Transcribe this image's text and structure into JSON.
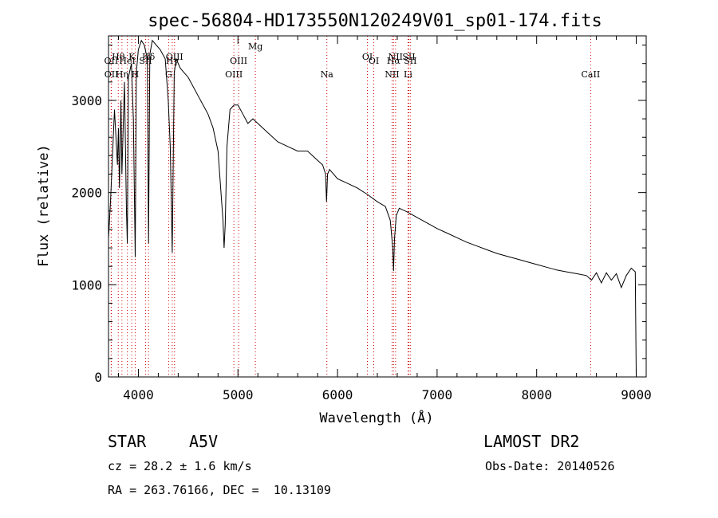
{
  "chart_data": {
    "type": "line",
    "title": "spec-56804-HD173550N120249V01_sp01-174.fits",
    "xlabel": "Wavelength (Å)",
    "ylabel": "Flux (relative)",
    "xlim": [
      3700,
      9100
    ],
    "ylim": [
      0,
      3700
    ],
    "xticks": [
      4000,
      5000,
      6000,
      7000,
      8000,
      9000
    ],
    "yticks": [
      0,
      1000,
      2000,
      3000
    ],
    "grid": false,
    "line_color": "#000000",
    "marker_color": "#cc0000",
    "series": [
      {
        "x": [
          3700,
          3720,
          3760,
          3790,
          3800,
          3810,
          3825,
          3835,
          3860,
          3880,
          3889,
          3900,
          3930,
          3950,
          3968,
          3980,
          4000,
          4030,
          4060,
          4090,
          4102,
          4115,
          4140,
          4180,
          4220,
          4270,
          4300,
          4320,
          4340,
          4360,
          4380,
          4420,
          4460,
          4500,
          4550,
          4600,
          4650,
          4700,
          4750,
          4800,
          4830,
          4850,
          4861,
          4872,
          4890,
          4920,
          4960,
          5000,
          5050,
          5100,
          5150,
          5200,
          5300,
          5400,
          5500,
          5600,
          5700,
          5800,
          5850,
          5880,
          5890,
          5900,
          5920,
          6000,
          6100,
          6200,
          6300,
          6400,
          6480,
          6530,
          6555,
          6563,
          6572,
          6590,
          6620,
          6700,
          6800,
          6900,
          7000,
          7100,
          7200,
          7300,
          7400,
          7500,
          7600,
          7700,
          7800,
          7900,
          8000,
          8100,
          8200,
          8300,
          8400,
          8500,
          8550,
          8600,
          8650,
          8700,
          8750,
          8800,
          8850,
          8900,
          8950,
          8990,
          9000
        ],
        "values": [
          1500,
          1900,
          2900,
          2300,
          2700,
          2050,
          3000,
          2200,
          3200,
          1800,
          1450,
          3250,
          3400,
          2800,
          1300,
          3300,
          3550,
          3650,
          3600,
          3450,
          1450,
          3500,
          3650,
          3600,
          3550,
          3450,
          3000,
          2500,
          1350,
          3300,
          3450,
          3350,
          3300,
          3250,
          3150,
          3050,
          2950,
          2850,
          2700,
          2450,
          2000,
          1700,
          1400,
          1650,
          2500,
          2900,
          2950,
          2950,
          2850,
          2750,
          2800,
          2750,
          2650,
          2550,
          2500,
          2450,
          2450,
          2350,
          2300,
          2200,
          1900,
          2200,
          2250,
          2150,
          2100,
          2050,
          1980,
          1900,
          1850,
          1700,
          1400,
          1150,
          1500,
          1750,
          1830,
          1790,
          1730,
          1670,
          1610,
          1560,
          1510,
          1460,
          1420,
          1380,
          1340,
          1310,
          1280,
          1250,
          1220,
          1190,
          1160,
          1140,
          1120,
          1100,
          1050,
          1130,
          1020,
          1130,
          1050,
          1120,
          970,
          1100,
          1180,
          1140,
          0
        ]
      }
    ],
    "lines": [
      {
        "name": "Hθ",
        "x": 3798,
        "level": 1
      },
      {
        "name": "K",
        "x": 3934,
        "level": 1
      },
      {
        "name": "Hδ",
        "x": 4102,
        "level": 1
      },
      {
        "name": "OIII",
        "x": 4363,
        "level": 1
      },
      {
        "name": "OI",
        "x": 6300,
        "level": 1
      },
      {
        "name": "NII",
        "x": 6583,
        "level": 1
      },
      {
        "name": "SII",
        "x": 6716,
        "level": 1
      },
      {
        "name": "OII",
        "x": 3727,
        "level": 2
      },
      {
        "name": "HeI",
        "x": 3889,
        "level": 2
      },
      {
        "name": "SII",
        "x": 4072,
        "level": 2
      },
      {
        "name": "Hγ",
        "x": 4340,
        "level": 2
      },
      {
        "name": "OIII",
        "x": 5007,
        "level": 2
      },
      {
        "name": "OI",
        "x": 6364,
        "level": 2
      },
      {
        "name": "Hα",
        "x": 6563,
        "level": 2
      },
      {
        "name": "SII",
        "x": 6731,
        "level": 2
      },
      {
        "name": "Mg",
        "x": 5175,
        "level": 0
      },
      {
        "name": "OII",
        "x": 3729,
        "level": 3
      },
      {
        "name": "Hη",
        "x": 3835,
        "level": 3
      },
      {
        "name": "H",
        "x": 3968,
        "level": 3
      },
      {
        "name": "G",
        "x": 4304,
        "level": 3
      },
      {
        "name": "OIII",
        "x": 4959,
        "level": 3
      },
      {
        "name": "Na",
        "x": 5893,
        "level": 3
      },
      {
        "name": "NII",
        "x": 6548,
        "level": 3
      },
      {
        "name": "Li",
        "x": 6708,
        "level": 3
      },
      {
        "name": "CaII",
        "x": 8542,
        "level": 3
      }
    ]
  },
  "info": {
    "object_type": "STAR",
    "subclass": "A5V",
    "survey": "LAMOST DR2",
    "cz": "cz = 28.2 ± 1.6 km/s",
    "obs_date": "Obs-Date: 20140526",
    "coords": "RA = 263.76166, DEC =  10.13109"
  }
}
